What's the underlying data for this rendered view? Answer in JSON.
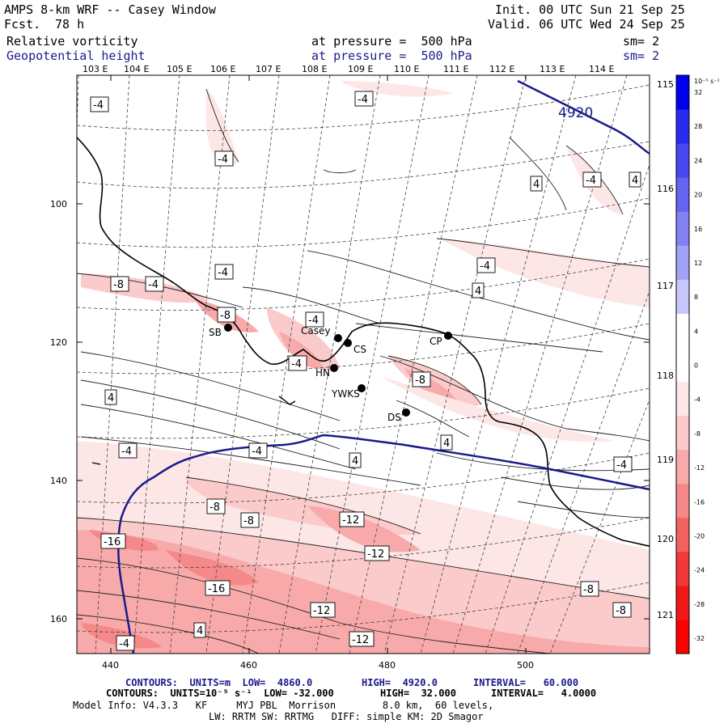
{
  "header": {
    "title": "AMPS 8-km WRF -- Casey Window",
    "fcst_label": "Fcst.",
    "fcst_value": "78 h",
    "init": "Init. 00 UTC Sun 21 Sep 25",
    "valid": "Valid. 06 UTC Wed 24 Sep 25",
    "field1": {
      "name": "Relative vorticity",
      "level": "at pressure =  500 hPa",
      "sm": "sm= 2"
    },
    "field2": {
      "name": "Geopotential height",
      "level": "at pressure =  500 hPa",
      "sm": "sm= 2"
    }
  },
  "map": {
    "lon_labels": [
      "103 E",
      "104 E",
      "105 E",
      "106 E",
      "107 E",
      "108 E",
      "109 E",
      "110 E",
      "111 E",
      "112 E",
      "113 E",
      "114 E"
    ],
    "lat_labels_right": [
      "115 E",
      "116 E",
      "117 E",
      "118 E",
      "119 E",
      "120 E",
      "121 E"
    ],
    "x_ticks": [
      "440",
      "460",
      "480",
      "500"
    ],
    "y_ticks": [
      "100",
      "120",
      "140",
      "160"
    ],
    "stations": [
      {
        "id": "SB",
        "label": "SB"
      },
      {
        "id": "casey",
        "label": "Casey"
      },
      {
        "id": "CS",
        "label": "CS"
      },
      {
        "id": "HN",
        "label": "HN"
      },
      {
        "id": "YWKS",
        "label": "YWKS"
      },
      {
        "id": "DS",
        "label": "DS"
      },
      {
        "id": "CP",
        "label": "CP"
      }
    ],
    "height_label": "4920",
    "contour_labels": [
      "-4",
      "-4",
      "4",
      "-4",
      "4",
      "-4",
      "-8",
      "-4",
      "-4",
      "-4",
      "-4",
      "4",
      "-8",
      "-4",
      "-8",
      "4",
      "-4",
      "4",
      "-4",
      "-4",
      "-8",
      "-8",
      "-12",
      "-12",
      "-16",
      "-16",
      "-12",
      "-12",
      "4",
      "-4",
      "-8",
      "-8",
      "4"
    ]
  },
  "colorbar": {
    "units": "10⁻⁵ s⁻¹",
    "labels": [
      "32",
      "28",
      "24",
      "20",
      "16",
      "12",
      "8",
      "4",
      "0",
      "-4",
      "-8",
      "-12",
      "-16",
      "-20",
      "-24",
      "-28",
      "-32"
    ],
    "colors": [
      "#0000f0",
      "#2a2af0",
      "#4848f0",
      "#6464f0",
      "#8282f2",
      "#a2a2f6",
      "#c6c6fa",
      "#ffffff",
      "#ffffff",
      "#fde6e6",
      "#fbcaca",
      "#f8aaaa",
      "#f58888",
      "#f26262",
      "#f23838",
      "#f01818",
      "#ff0000"
    ]
  },
  "footer": {
    "line1_a": "CONTOURS:  UNITS=m  LOW=  4860.0",
    "line1_b": "HIGH=  4920.0",
    "line1_c": "INTERVAL=   60.000",
    "line2_a": "CONTOURS:  UNITS=10⁻⁵ s⁻¹  LOW= -32.000",
    "line2_b": "HIGH=  32.000",
    "line2_c": "INTERVAL=   4.0000",
    "line3": "Model Info: V4.3.3   KF     MYJ PBL  Morrison        8.0 km,  60 levels,",
    "line4": "LW: RRTM SW: RRTMG   DIFF: simple KM: 2D Smagor"
  }
}
